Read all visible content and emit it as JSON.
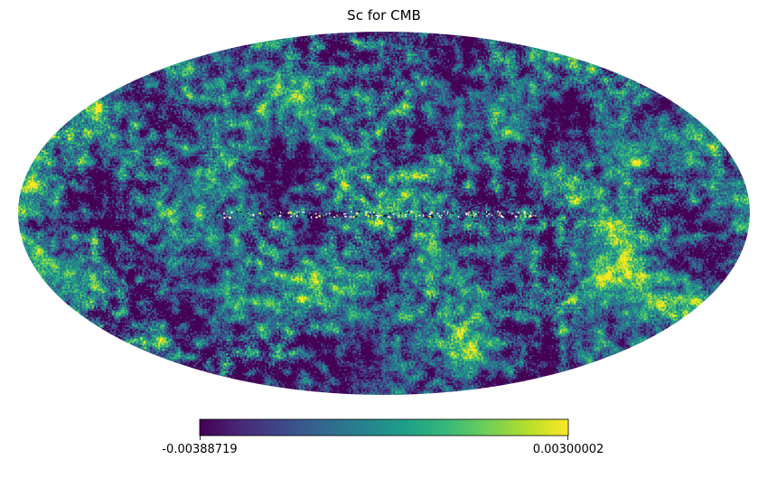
{
  "chart_data": {
    "type": "heatmap",
    "projection": "mollweide",
    "title": "Sc for CMB",
    "colormap": "viridis",
    "colorbar": {
      "min": -0.00388719,
      "max": 0.00300002,
      "min_label": "-0.00388719",
      "max_label": "0.00300002",
      "orientation": "horizontal",
      "placement": "bottom-center"
    },
    "grid": false,
    "colors": {
      "viridis_stops": [
        "#440154",
        "#482878",
        "#3e4989",
        "#31688e",
        "#26828e",
        "#1f9e89",
        "#35b779",
        "#6ece58",
        "#b5de2b",
        "#fde725"
      ]
    }
  }
}
